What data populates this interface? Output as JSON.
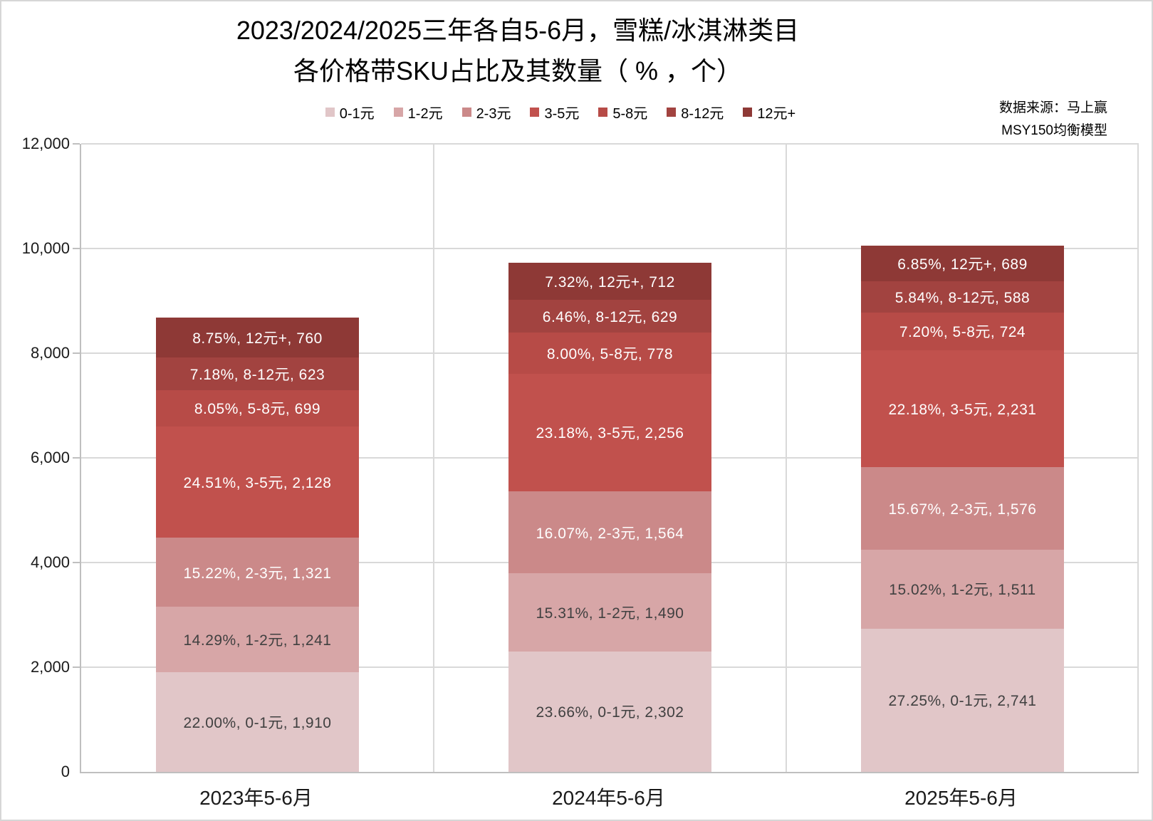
{
  "title": {
    "line1": "2023/2024/2025三年各自5-6月，雪糕/冰淇淋类目",
    "line2": "各价格带SKU占比及其数量（ % ，个）"
  },
  "source": {
    "line1": "数据来源：马上赢",
    "line2": "MSY150均衡模型"
  },
  "chart_data": {
    "type": "bar",
    "stacked": true,
    "grid": true,
    "legend_position": "top",
    "categories": [
      "2023年5-6月",
      "2024年5-6月",
      "2025年5-6月"
    ],
    "ylim": [
      0,
      12000
    ],
    "yticks": [
      0,
      2000,
      4000,
      6000,
      8000,
      10000,
      12000
    ],
    "ytick_labels": [
      "0",
      "2,000",
      "4,000",
      "6,000",
      "8,000",
      "10,000",
      "12,000"
    ],
    "totals": [
      8682,
      9731,
      10060
    ],
    "series": [
      {
        "name": "0-1元",
        "color": "#E1C6C8",
        "text_color": "#404040",
        "values": [
          1910,
          2302,
          2741
        ],
        "percents": [
          "22.00%",
          "23.66%",
          "27.25%"
        ],
        "labels": [
          "22.00%, 0-1元, 1,910",
          "23.66%, 0-1元, 2,302",
          "27.25%, 0-1元, 2,741"
        ]
      },
      {
        "name": "1-2元",
        "color": "#D7A6A7",
        "text_color": "#404040",
        "values": [
          1241,
          1490,
          1511
        ],
        "percents": [
          "14.29%",
          "15.31%",
          "15.02%"
        ],
        "labels": [
          "14.29%, 1-2元, 1,241",
          "15.31%, 1-2元, 1,490",
          "15.02%, 1-2元, 1,511"
        ]
      },
      {
        "name": "2-3元",
        "color": "#CB8989",
        "text_color": "#FFFFFF",
        "values": [
          1321,
          1564,
          1576
        ],
        "percents": [
          "15.22%",
          "16.07%",
          "15.67%"
        ],
        "labels": [
          "15.22%, 2-3元, 1,321",
          "16.07%, 2-3元, 1,564",
          "15.67%, 2-3元, 1,576"
        ]
      },
      {
        "name": "3-5元",
        "color": "#C1514D",
        "text_color": "#FFFFFF",
        "values": [
          2128,
          2256,
          2231
        ],
        "percents": [
          "24.51%",
          "23.18%",
          "22.18%"
        ],
        "labels": [
          "24.51%, 3-5元, 2,128",
          "23.18%, 3-5元, 2,256",
          "22.18%, 3-5元, 2,231"
        ]
      },
      {
        "name": "5-8元",
        "color": "#B74B47",
        "text_color": "#FFFFFF",
        "values": [
          699,
          778,
          724
        ],
        "percents": [
          "8.05%",
          "8.00%",
          "7.20%"
        ],
        "labels": [
          "8.05%, 5-8元, 699",
          "8.00%, 5-8元, 778",
          "7.20%, 5-8元, 724"
        ]
      },
      {
        "name": "8-12元",
        "color": "#A24340",
        "text_color": "#FFFFFF",
        "values": [
          623,
          629,
          588
        ],
        "percents": [
          "7.18%",
          "6.46%",
          "5.84%"
        ],
        "labels": [
          "7.18%, 8-12元, 623",
          "6.46%, 8-12元, 629",
          "5.84%, 8-12元, 588"
        ]
      },
      {
        "name": "12元+",
        "color": "#8E3936",
        "text_color": "#FFFFFF",
        "values": [
          760,
          712,
          689
        ],
        "percents": [
          "8.75%",
          "7.32%",
          "6.85%"
        ],
        "labels": [
          "8.75%, 12元+, 760",
          "7.32%, 12元+, 712",
          "6.85%, 12元+, 689"
        ]
      }
    ]
  }
}
